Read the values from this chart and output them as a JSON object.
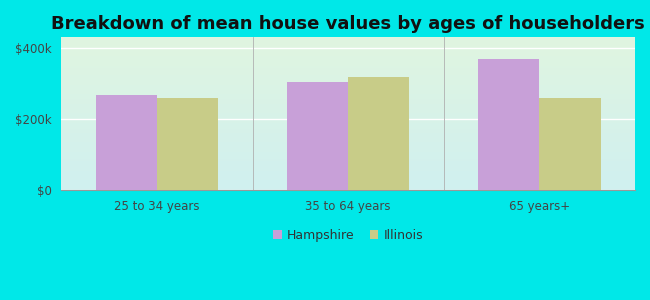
{
  "title": "Breakdown of mean house values by ages of householders",
  "categories": [
    "25 to 34 years",
    "35 to 64 years",
    "65 years+"
  ],
  "hampshire_values": [
    268000,
    305000,
    368000
  ],
  "illinois_values": [
    260000,
    318000,
    260000
  ],
  "hampshire_color": "#c8a0d8",
  "illinois_color": "#c8cc88",
  "background_color": "#00e8e8",
  "yticks": [
    0,
    200000,
    400000
  ],
  "ytick_labels": [
    "$0",
    "$200k",
    "$400k"
  ],
  "ylim": [
    0,
    430000
  ],
  "bar_width": 0.32,
  "legend_hampshire": "Hampshire",
  "legend_illinois": "Illinois",
  "title_fontsize": 13,
  "tick_fontsize": 8.5,
  "legend_fontsize": 9,
  "plot_bg_colors": [
    "#e8f8e8",
    "#d8f5f0"
  ],
  "grid_color": "#ffffff",
  "divider_color": "#b0b0b0"
}
